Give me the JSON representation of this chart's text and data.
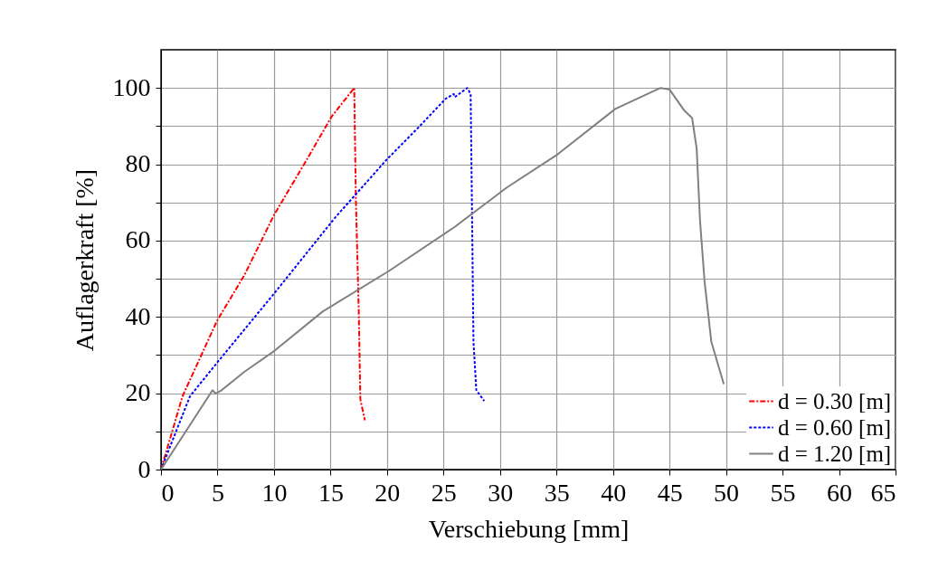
{
  "chart_data": {
    "type": "line",
    "xlabel": "Verschiebung [mm]",
    "ylabel": "Auflagerkraft [%]",
    "xlim": [
      0,
      65
    ],
    "xticks": [
      0,
      5,
      10,
      15,
      20,
      25,
      30,
      35,
      40,
      45,
      50,
      55,
      60,
      65
    ],
    "ylim": [
      0,
      110
    ],
    "yticks": [
      0,
      {
        "value": 10,
        "label": null
      },
      20,
      {
        "value": 30,
        "label": null
      },
      40,
      {
        "value": 50,
        "label": null
      },
      60,
      {
        "value": 70,
        "label": null
      },
      80,
      {
        "value": 90,
        "label": null
      },
      100
    ],
    "grid": true,
    "legend": "bottom right",
    "series": [
      {
        "name": "d = 0.30 [m]",
        "color": "#ff0000",
        "line_style": "dashed",
        "x": [
          0,
          1.9,
          4.96,
          7.37,
          10.0,
          12.7,
          15.1,
          17.1,
          17.24,
          17.5,
          17.64,
          18.04
        ],
        "values": [
          0,
          19.2,
          39,
          50.9,
          66.7,
          80.2,
          92.5,
          100,
          71.5,
          41.4,
          18.4,
          12.9
        ]
      },
      {
        "name": "d = 0.60 [m]",
        "color": "#0000ff",
        "line_style": "dotted",
        "x": [
          0,
          2.56,
          4.96,
          10.03,
          15.4,
          19.9,
          22.8,
          25.2,
          25.9,
          26.0,
          27.1,
          27.4,
          27.5,
          27.65,
          27.9,
          28.6
        ],
        "values": [
          0,
          19.2,
          28,
          46.2,
          66,
          81,
          89.7,
          97.2,
          98.4,
          97.6,
          100,
          98.4,
          73,
          33.5,
          20.8,
          18
        ]
      },
      {
        "name": "d = 1.20 [m]",
        "color": "#808080",
        "line_style": "solid",
        "x": [
          0,
          4.56,
          4.83,
          5.36,
          7.37,
          10.03,
          14.3,
          20.2,
          26.0,
          30.6,
          35.1,
          40.2,
          44.2,
          45.0,
          46.3,
          47.0,
          47.4,
          47.7,
          48.1,
          48.7,
          49.8
        ],
        "values": [
          0,
          20.8,
          19.9,
          20.8,
          25.6,
          31.1,
          41.4,
          52.1,
          63.6,
          73.9,
          82.6,
          94.5,
          100,
          99.6,
          94.1,
          92.1,
          84.2,
          65.2,
          49.3,
          33.5,
          22.4
        ]
      }
    ]
  }
}
